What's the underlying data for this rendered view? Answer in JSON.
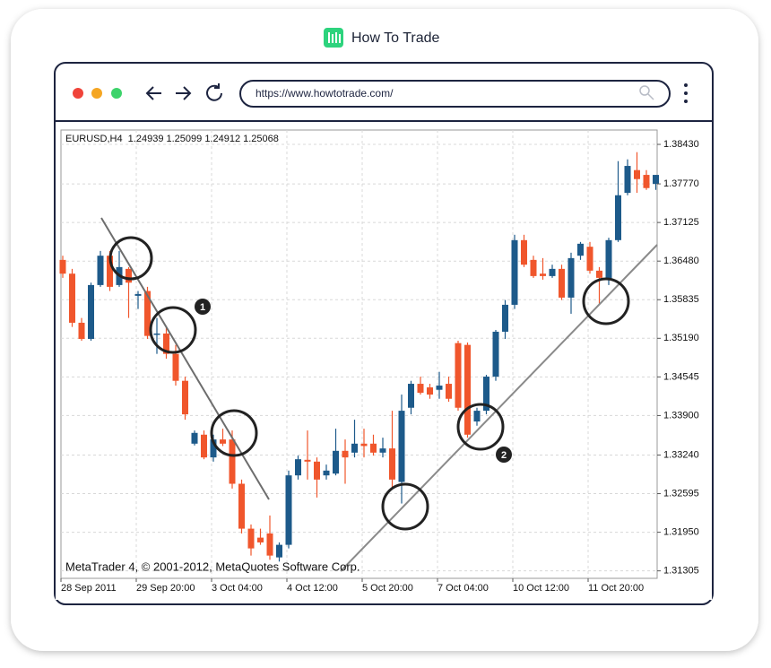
{
  "page": {
    "brand": "How To Trade",
    "url": "https://www.howtotrade.com/"
  },
  "chart_data": {
    "type": "candlestick",
    "title": "EURUSD,H4  1.24939 1.25099 1.24912 1.25068",
    "watermark": "MetaTrader 4, © 2001-2012, MetaQuotes Software Corp.",
    "markers": [
      "1",
      "2"
    ],
    "categories": [
      "28 Sep 2011",
      null,
      null,
      null,
      null,
      null,
      null,
      null,
      "29 Sep 20:00",
      null,
      null,
      null,
      null,
      null,
      null,
      null,
      "3 Oct 04:00",
      null,
      null,
      null,
      null,
      null,
      null,
      null,
      "4 Oct 12:00",
      null,
      null,
      null,
      null,
      null,
      null,
      null,
      "5 Oct 20:00",
      null,
      null,
      null,
      null,
      null,
      null,
      null,
      "7 Oct 04:00",
      null,
      null,
      null,
      null,
      null,
      null,
      null,
      "10 Oct 12:00",
      null,
      null,
      null,
      null,
      null,
      null,
      null,
      "11 Oct 20:00",
      null,
      null,
      null,
      null,
      null,
      null,
      null
    ],
    "open": [
      1.365,
      1.3627,
      1.3545,
      1.3518,
      1.3608,
      1.3657,
      1.3608,
      1.3635,
      1.359,
      1.3598,
      1.3525,
      1.3527,
      1.3493,
      1.3448,
      1.3343,
      1.3358,
      1.332,
      1.335,
      1.335,
      1.3276,
      1.3201,
      1.3186,
      1.3193,
      1.3153,
      1.3174,
      1.329,
      1.3316,
      1.3313,
      1.329,
      1.3293,
      1.3331,
      1.3328,
      1.3343,
      1.3343,
      1.3328,
      1.3335,
      1.3279,
      1.3403,
      1.3443,
      1.3437,
      1.3433,
      1.3443,
      1.3511,
      1.3508,
      1.338,
      1.3398,
      1.3455,
      1.353,
      1.3575,
      1.3683,
      1.365,
      1.3627,
      1.3623,
      1.3635,
      1.3587,
      1.3657,
      1.3672,
      1.3632,
      1.3617,
      1.3683,
      1.3762,
      1.38,
      1.3792,
      1.3777
    ],
    "high": [
      1.3657,
      1.3635,
      1.3553,
      1.3612,
      1.3665,
      1.3665,
      1.3665,
      1.3638,
      1.3598,
      1.3605,
      1.3553,
      1.3538,
      1.3508,
      1.3455,
      1.3365,
      1.3365,
      1.3358,
      1.3368,
      1.3365,
      1.3283,
      1.3208,
      1.3201,
      1.3223,
      1.3178,
      1.3298,
      1.3323,
      1.3365,
      1.332,
      1.3308,
      1.3368,
      1.335,
      1.3383,
      1.3368,
      1.3358,
      1.3353,
      1.3398,
      1.3425,
      1.3448,
      1.3455,
      1.3443,
      1.3463,
      1.3455,
      1.3515,
      1.3512,
      1.3403,
      1.3458,
      1.3533,
      1.3583,
      1.3692,
      1.3692,
      1.3657,
      1.3653,
      1.3642,
      1.3642,
      1.3662,
      1.368,
      1.368,
      1.3638,
      1.3687,
      1.3815,
      1.3818,
      1.383,
      1.38,
      1.3792
    ],
    "low": [
      1.362,
      1.3538,
      1.3515,
      1.3515,
      1.3605,
      1.3598,
      1.3605,
      1.3553,
      1.3568,
      1.3518,
      1.3493,
      1.3485,
      1.344,
      1.3383,
      1.334,
      1.3317,
      1.3313,
      1.3339,
      1.3268,
      1.3193,
      1.3156,
      1.3174,
      1.3149,
      1.3146,
      1.3168,
      1.3283,
      1.3283,
      1.3253,
      1.3283,
      1.329,
      1.3276,
      1.332,
      1.332,
      1.3323,
      1.332,
      1.3268,
      1.3243,
      1.3392,
      1.3425,
      1.3418,
      1.3418,
      1.3413,
      1.3398,
      1.3353,
      1.3373,
      1.3392,
      1.3448,
      1.3518,
      1.3568,
      1.3638,
      1.362,
      1.3617,
      1.362,
      1.3583,
      1.356,
      1.365,
      1.3627,
      1.3575,
      1.3608,
      1.368,
      1.3758,
      1.3762,
      1.3767,
      1.3767
    ],
    "close": [
      1.3627,
      1.3545,
      1.3518,
      1.3608,
      1.3657,
      1.3605,
      1.3638,
      1.3612,
      1.3593,
      1.3523,
      1.3527,
      1.3493,
      1.3448,
      1.3392,
      1.3361,
      1.332,
      1.335,
      1.3343,
      1.3276,
      1.3201,
      1.3168,
      1.3178,
      1.3156,
      1.3174,
      1.329,
      1.3317,
      1.3313,
      1.3283,
      1.3298,
      1.3331,
      1.332,
      1.3343,
      1.3339,
      1.3328,
      1.3335,
      1.3283,
      1.3398,
      1.3443,
      1.3428,
      1.3425,
      1.344,
      1.3418,
      1.3403,
      1.3358,
      1.3398,
      1.3455,
      1.353,
      1.3575,
      1.3683,
      1.3642,
      1.3623,
      1.3623,
      1.3635,
      1.3587,
      1.3653,
      1.3677,
      1.3632,
      1.362,
      1.3683,
      1.3758,
      1.3807,
      1.3785,
      1.377,
      1.3792
    ],
    "up_color": "#1d5a8a",
    "down_color": "#f0562c",
    "ylim": [
      1.3118,
      1.3867
    ],
    "yticks": [
      {
        "value": 1.3843,
        "label": "1.38430"
      },
      {
        "value": 1.3777,
        "label": "1.37770"
      },
      1.37125,
      {
        "value": 1.3648,
        "label": "1.36480"
      },
      1.35835,
      {
        "value": 1.3519,
        "label": "1.35190"
      },
      1.34545,
      {
        "value": 1.339,
        "label": "1.33900"
      },
      {
        "value": 1.3324,
        "label": "1.33240"
      },
      1.32595,
      {
        "value": 1.3195,
        "label": "1.31950"
      },
      1.31305
    ],
    "grid": true
  }
}
